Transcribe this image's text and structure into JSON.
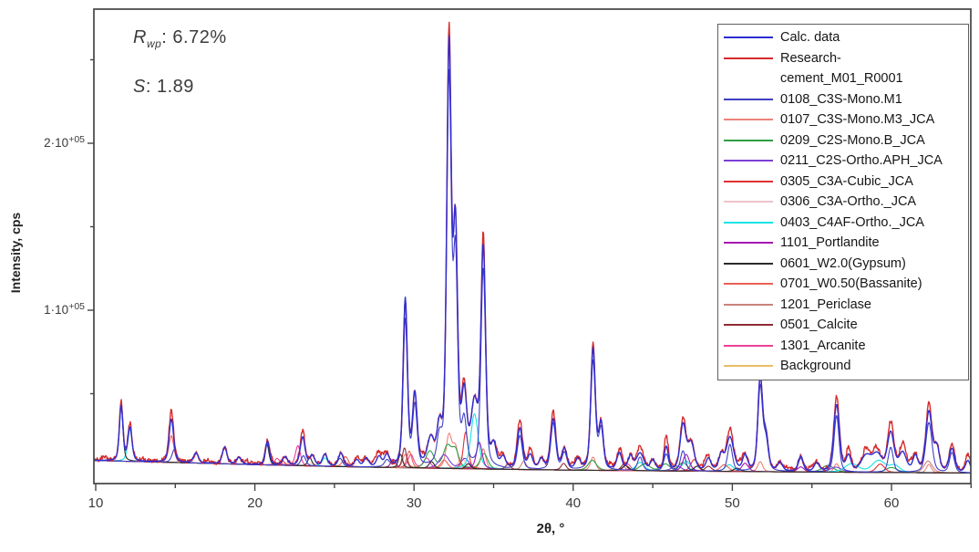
{
  "annotations": {
    "rwp_symbol": "R",
    "rwp_subscript": "wp",
    "rwp_rest": ": 6.72%",
    "rwp_value": "6.72%",
    "s_symbol": "S",
    "s_rest": ": 1.89",
    "s_value": "1.89"
  },
  "chart_data": {
    "type": "line",
    "title": "",
    "xlabel": "2θ, °",
    "ylabel": "Intensity, cps",
    "x_axis": {
      "min": 9.89,
      "max": 64.98,
      "major_ticks": [
        10,
        20,
        30,
        40,
        50,
        60
      ],
      "minor_ticks": [
        15,
        25,
        35,
        45,
        55,
        65
      ]
    },
    "y_axis": {
      "unit_cps": 100000,
      "min_units": -0.038,
      "max_units": 2.8,
      "major_ticks": [
        {
          "value_units": 1,
          "label": "1·10",
          "sup": "+05"
        },
        {
          "value_units": 2,
          "label": "2·10",
          "sup": "+05"
        }
      ],
      "minor_ticks_units": [
        0.5,
        1.5,
        2.5
      ]
    },
    "grid": false,
    "legend_position": "top-right",
    "default_width": 0.3,
    "background_points": [
      [
        9.89,
        0.1
      ],
      [
        15,
        0.088
      ],
      [
        20,
        0.075
      ],
      [
        25,
        0.064
      ],
      [
        30,
        0.055
      ],
      [
        35,
        0.048
      ],
      [
        40,
        0.042
      ],
      [
        45,
        0.038
      ],
      [
        50,
        0.034
      ],
      [
        55,
        0.031
      ],
      [
        60,
        0.028
      ],
      [
        65,
        0.025
      ]
    ],
    "series": [
      {
        "name": "Calc. data",
        "color": "#2e2ed2",
        "role": "total-calculated",
        "z": 16,
        "lw": 1.4,
        "peaks": [
          [
            11.6,
            0.33,
            0.22
          ],
          [
            12.15,
            0.2,
            0.25
          ],
          [
            14.75,
            0.26,
            0.28
          ],
          [
            16.3,
            0.06
          ],
          [
            18.1,
            0.1,
            0.28
          ],
          [
            19.0,
            0.04
          ],
          [
            20.8,
            0.14,
            0.25
          ],
          [
            21.9,
            0.05
          ],
          [
            23.0,
            0.17,
            0.3
          ],
          [
            23.6,
            0.06
          ],
          [
            24.4,
            0.07
          ],
          [
            25.4,
            0.08
          ],
          [
            26.4,
            0.04
          ],
          [
            27.0,
            0.05
          ],
          [
            27.8,
            0.06
          ],
          [
            28.3,
            0.07
          ],
          [
            29.45,
            1.0,
            0.26
          ],
          [
            30.05,
            0.42,
            0.28
          ],
          [
            31.05,
            0.15,
            0.4
          ],
          [
            31.6,
            0.2,
            0.3
          ],
          [
            32.2,
            2.48,
            0.28
          ],
          [
            32.6,
            1.35,
            0.26
          ],
          [
            33.15,
            0.4,
            0.32
          ],
          [
            33.8,
            0.35,
            0.42
          ],
          [
            34.35,
            1.3,
            0.28
          ],
          [
            35.0,
            0.12
          ],
          [
            35.6,
            0.06
          ],
          [
            36.65,
            0.24,
            0.32
          ],
          [
            37.3,
            0.08
          ],
          [
            38.0,
            0.06
          ],
          [
            38.75,
            0.3,
            0.32
          ],
          [
            39.45,
            0.12
          ],
          [
            40.3,
            0.06
          ],
          [
            41.25,
            0.72,
            0.28
          ],
          [
            41.75,
            0.27,
            0.28
          ],
          [
            42.9,
            0.1
          ],
          [
            43.6,
            0.08
          ],
          [
            44.2,
            0.1,
            0.45
          ],
          [
            45.0,
            0.06
          ],
          [
            45.85,
            0.14,
            0.26
          ],
          [
            46.9,
            0.27,
            0.35
          ],
          [
            47.4,
            0.16,
            0.4
          ],
          [
            48.5,
            0.07
          ],
          [
            49.3,
            0.09
          ],
          [
            49.85,
            0.2,
            0.45
          ],
          [
            50.8,
            0.09
          ],
          [
            51.75,
            0.55,
            0.28
          ],
          [
            52.1,
            0.2,
            0.3
          ],
          [
            53.0,
            0.05
          ],
          [
            54.3,
            0.09
          ],
          [
            55.3,
            0.05
          ],
          [
            56.55,
            0.4,
            0.35
          ],
          [
            57.3,
            0.09
          ],
          [
            58.4,
            0.09,
            0.6
          ],
          [
            59.1,
            0.1,
            0.6
          ],
          [
            59.95,
            0.23,
            0.4
          ],
          [
            60.7,
            0.11,
            0.45
          ],
          [
            61.5,
            0.09
          ],
          [
            62.35,
            0.36,
            0.38
          ],
          [
            62.85,
            0.14
          ],
          [
            63.8,
            0.14,
            0.35
          ],
          [
            64.8,
            0.07
          ]
        ]
      },
      {
        "name": "Research-cement_M01_R0001",
        "color": "#d62b2b",
        "role": "observed",
        "z": 15,
        "lw": 1.4,
        "noise": 0.013,
        "include_series": "Calc. data",
        "peaks": [
          [
            10.5,
            0.02
          ],
          [
            11.6,
            0.02
          ],
          [
            12.15,
            0.02
          ],
          [
            13.0,
            0.015
          ],
          [
            14.75,
            0.05
          ],
          [
            17.0,
            0.015
          ],
          [
            19.5,
            0.02
          ],
          [
            21.0,
            0.02
          ],
          [
            23.0,
            0.04
          ],
          [
            26.6,
            0.02
          ],
          [
            27.6,
            0.03
          ],
          [
            28.05,
            0.03
          ],
          [
            30.5,
            0.03
          ],
          [
            32.2,
            0.08,
            0.15
          ],
          [
            33.05,
            0.04
          ],
          [
            34.35,
            0.07,
            0.15
          ],
          [
            35.3,
            0.03
          ],
          [
            36.65,
            0.05
          ],
          [
            37.3,
            0.03
          ],
          [
            38.75,
            0.04
          ],
          [
            40.0,
            0.02
          ],
          [
            41.25,
            0.04,
            0.15
          ],
          [
            42.3,
            0.02
          ],
          [
            43.0,
            0.03
          ],
          [
            44.2,
            0.04
          ],
          [
            45.85,
            0.06
          ],
          [
            46.9,
            0.04
          ],
          [
            48.3,
            0.03
          ],
          [
            49.85,
            0.05
          ],
          [
            50.5,
            0.03
          ],
          [
            53.5,
            0.02
          ],
          [
            55.0,
            0.02
          ],
          [
            56.55,
            0.05
          ],
          [
            57.3,
            0.04
          ],
          [
            58.4,
            0.04
          ],
          [
            59.0,
            0.03
          ],
          [
            59.95,
            0.06
          ],
          [
            60.7,
            0.05
          ],
          [
            61.2,
            0.03
          ],
          [
            62.35,
            0.05
          ],
          [
            63.8,
            0.03
          ],
          [
            64.8,
            0.04
          ]
        ]
      },
      {
        "name": "0108_C3S-Mono.M1",
        "color": "#4040c6",
        "role": "phase",
        "z": 14,
        "lw": 1.1,
        "peaks": [
          [
            14.95,
            0.08
          ],
          [
            23.05,
            0.06
          ],
          [
            25.35,
            0.05
          ],
          [
            28.3,
            0.04
          ],
          [
            29.45,
            0.88,
            0.26
          ],
          [
            30.05,
            0.36,
            0.28
          ],
          [
            31.6,
            0.15
          ],
          [
            32.2,
            2.3,
            0.28
          ],
          [
            32.6,
            1.2,
            0.26
          ],
          [
            33.15,
            0.25
          ],
          [
            34.35,
            1.2,
            0.28
          ],
          [
            36.65,
            0.2
          ],
          [
            38.75,
            0.28
          ],
          [
            39.45,
            0.1
          ],
          [
            41.25,
            0.65,
            0.28
          ],
          [
            41.75,
            0.24,
            0.28
          ],
          [
            44.2,
            0.08
          ],
          [
            45.85,
            0.1
          ],
          [
            46.9,
            0.12
          ],
          [
            49.85,
            0.16
          ],
          [
            51.75,
            0.5,
            0.28
          ],
          [
            52.1,
            0.18
          ],
          [
            54.3,
            0.08
          ],
          [
            56.55,
            0.34
          ],
          [
            59.95,
            0.15
          ],
          [
            62.35,
            0.3,
            0.38
          ],
          [
            63.8,
            0.12
          ]
        ]
      },
      {
        "name": "0107_C3S-Mono.M3_JCA",
        "color": "#ec827a",
        "role": "phase",
        "z": 4,
        "lw": 1.1,
        "peaks": [
          [
            29.45,
            0.08
          ],
          [
            32.2,
            0.2,
            0.35
          ],
          [
            32.6,
            0.12
          ],
          [
            34.35,
            0.12
          ],
          [
            41.25,
            0.08
          ],
          [
            51.75,
            0.06
          ],
          [
            56.55,
            0.05
          ],
          [
            62.35,
            0.05
          ]
        ]
      },
      {
        "name": "0209_C2S-Mono.B_JCA",
        "color": "#2f9f45",
        "role": "phase",
        "z": 5,
        "lw": 1.1,
        "peaks": [
          [
            31.0,
            0.1,
            0.5
          ],
          [
            32.1,
            0.13,
            0.5
          ],
          [
            32.6,
            0.1,
            0.4
          ],
          [
            34.4,
            0.09,
            0.45
          ],
          [
            41.2,
            0.06,
            0.5
          ],
          [
            44.5,
            0.04,
            0.6
          ],
          [
            45.8,
            0.04,
            0.5
          ],
          [
            46.9,
            0.05,
            0.5
          ],
          [
            56.0,
            0.04,
            0.7
          ],
          [
            60.0,
            0.03,
            0.7
          ]
        ]
      },
      {
        "name": "0211_C2S-Ortho.APH_JCA",
        "color": "#7c3ed6",
        "role": "phase",
        "z": 6,
        "lw": 1.1,
        "peaks": [
          [
            31.9,
            0.08,
            0.6
          ],
          [
            33.2,
            0.06,
            0.5
          ],
          [
            46.5,
            0.03,
            0.6
          ],
          [
            56.5,
            0.03,
            0.7
          ]
        ]
      },
      {
        "name": "0305_C3A-Cubic_JCA",
        "color": "#e23030",
        "role": "phase",
        "z": 7,
        "lw": 1.1,
        "peaks": [
          [
            21.7,
            0.03
          ],
          [
            33.25,
            0.22,
            0.3
          ],
          [
            47.6,
            0.07,
            0.4
          ],
          [
            59.3,
            0.05,
            0.5
          ]
        ]
      },
      {
        "name": "0306_C3A-Ortho._JCA",
        "color": "#efc3c9",
        "role": "phase",
        "z": 3,
        "lw": 1.1,
        "peaks": [
          [
            23.6,
            0.02
          ],
          [
            33.0,
            0.07,
            0.4
          ],
          [
            47.7,
            0.03,
            0.4
          ]
        ]
      },
      {
        "name": "0403_C4AF-Ortho._JCA",
        "color": "#18e3e6",
        "role": "phase",
        "z": 8,
        "lw": 1.1,
        "peaks": [
          [
            12.15,
            0.19,
            0.28
          ],
          [
            24.4,
            0.05,
            0.35
          ],
          [
            33.8,
            0.33,
            0.45
          ],
          [
            44.2,
            0.05,
            0.5
          ],
          [
            47.1,
            0.06,
            0.5
          ],
          [
            49.8,
            0.04,
            0.5
          ],
          [
            57.5,
            0.05,
            0.8
          ],
          [
            59.2,
            0.07,
            0.8
          ],
          [
            60.2,
            0.04,
            0.6
          ]
        ]
      },
      {
        "name": "1101_Portlandite",
        "color": "#a517b2",
        "role": "phase",
        "z": 9,
        "lw": 1.1,
        "peaks": [
          [
            18.1,
            0.1,
            0.3
          ],
          [
            28.7,
            0.05
          ],
          [
            34.1,
            0.16,
            0.35
          ],
          [
            47.1,
            0.1,
            0.4
          ],
          [
            50.8,
            0.05,
            0.4
          ],
          [
            54.3,
            0.03,
            0.4
          ]
        ]
      },
      {
        "name": "0601_W2.0(Gypsum)",
        "color": "#2b2b2b",
        "role": "phase",
        "z": 13,
        "lw": 1.1,
        "peaks": [
          [
            11.6,
            0.33,
            0.22
          ],
          [
            20.75,
            0.13,
            0.25
          ],
          [
            23.45,
            0.05,
            0.25
          ],
          [
            29.15,
            0.08,
            0.25
          ],
          [
            31.1,
            0.04
          ],
          [
            33.4,
            0.03
          ],
          [
            43.3,
            0.03,
            0.4
          ],
          [
            47.8,
            0.03,
            0.4
          ],
          [
            50.3,
            0.02,
            0.4
          ]
        ]
      },
      {
        "name": "0701_W0.50(Bassanite)",
        "color": "#eb6156",
        "role": "phase",
        "z": 10,
        "lw": 1.1,
        "peaks": [
          [
            14.75,
            0.16,
            0.3
          ],
          [
            25.7,
            0.06,
            0.35
          ],
          [
            29.7,
            0.1,
            0.3
          ],
          [
            31.9,
            0.05,
            0.4
          ],
          [
            49.5,
            0.04,
            0.5
          ]
        ]
      },
      {
        "name": "1201_Periclase",
        "color": "#ca837c",
        "role": "phase",
        "z": 11,
        "lw": 1.1,
        "peaks": [
          [
            36.9,
            0.05,
            0.3
          ],
          [
            42.9,
            0.1,
            0.35
          ],
          [
            62.3,
            0.07,
            0.5
          ]
        ]
      },
      {
        "name": "0501_Calcite",
        "color": "#8f2b33",
        "role": "phase",
        "z": 12,
        "lw": 1.1,
        "peaks": [
          [
            29.4,
            0.12,
            0.25
          ],
          [
            35.9,
            0.03
          ],
          [
            39.4,
            0.04
          ],
          [
            43.2,
            0.04,
            0.35
          ],
          [
            48.5,
            0.03,
            0.4
          ]
        ]
      },
      {
        "name": "1301_Arcanite",
        "color": "#ee4095",
        "role": "phase",
        "z": 2,
        "lw": 1.1,
        "peaks": [
          [
            21.4,
            0.04
          ],
          [
            22.7,
            0.12,
            0.3
          ],
          [
            29.8,
            0.08,
            0.35
          ],
          [
            30.8,
            0.06,
            0.4
          ],
          [
            43.4,
            0.04,
            0.4
          ]
        ]
      },
      {
        "name": "Background",
        "color": "#e9bd67",
        "role": "background",
        "z": 0,
        "lw": 1.2,
        "peaks": []
      }
    ]
  }
}
